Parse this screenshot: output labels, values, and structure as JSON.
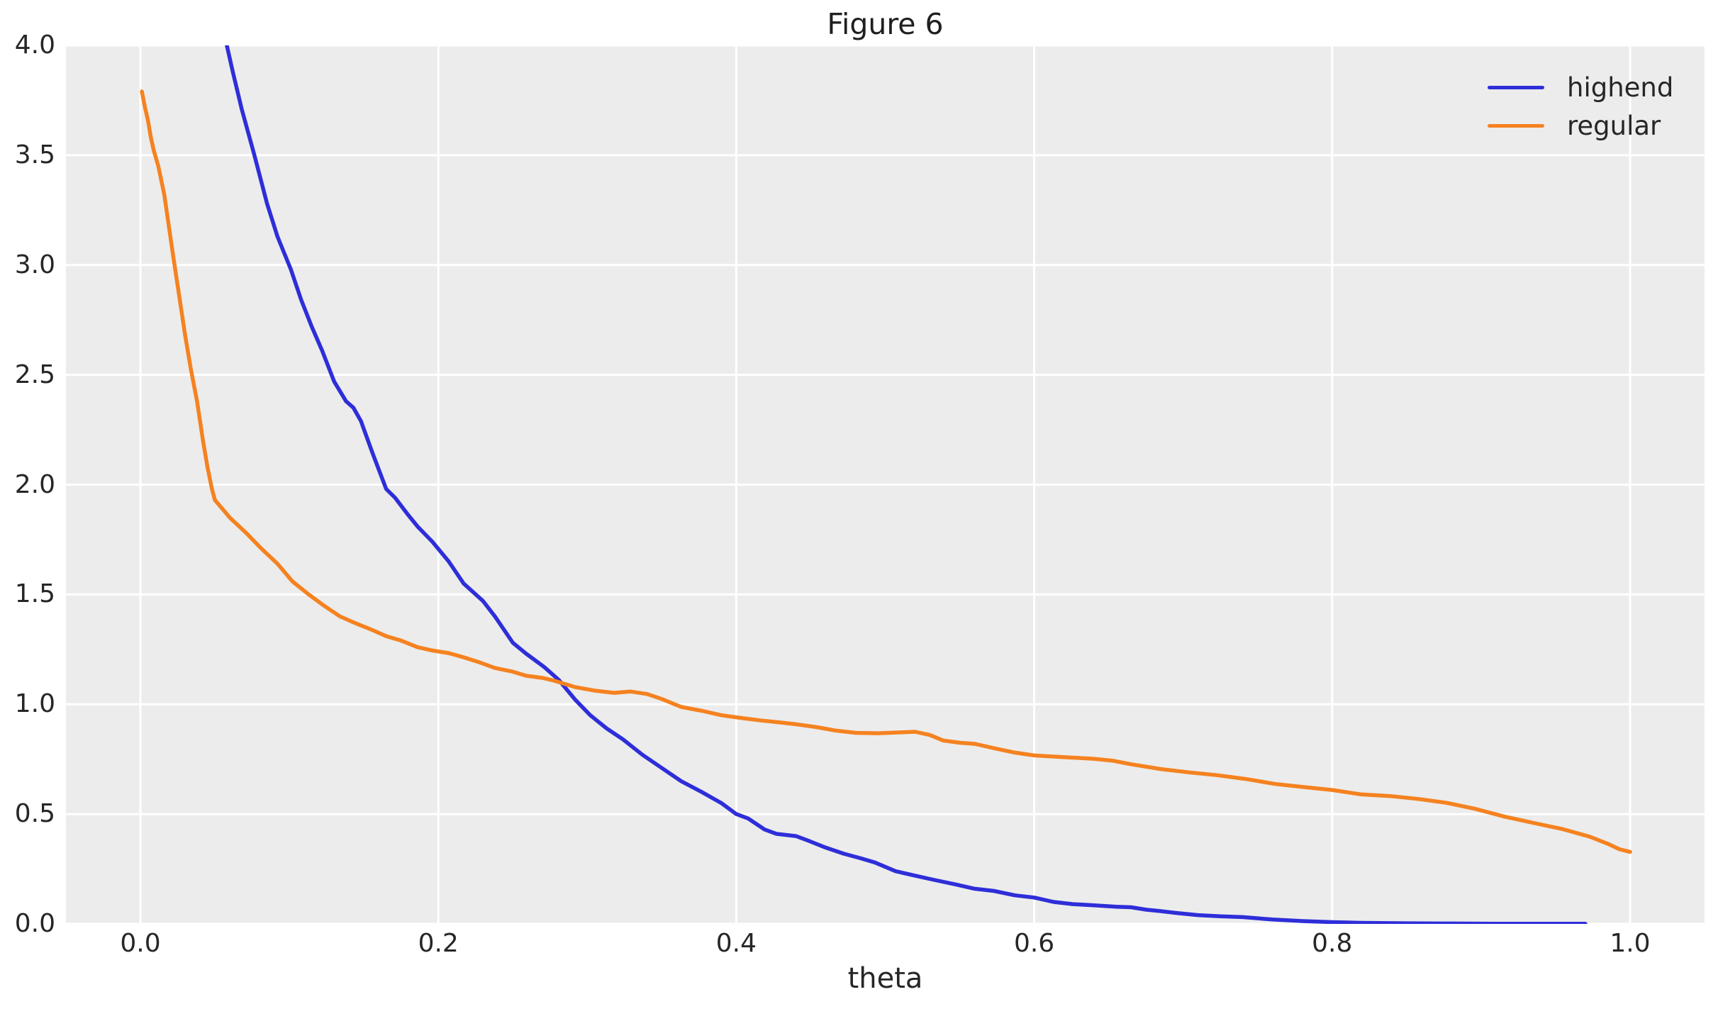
{
  "chart_data": {
    "type": "line",
    "title": "Figure 6",
    "xlabel": "theta",
    "ylabel": "",
    "xlim": [
      -0.05,
      1.05
    ],
    "ylim": [
      0,
      4
    ],
    "grid": true,
    "legend_position": "upper right",
    "axes_background": "#ececec",
    "grid_color": "#ffffff",
    "xticks": [
      0.0,
      0.2,
      0.4,
      0.6,
      0.8,
      1.0
    ],
    "xtick_labels": [
      "0.0",
      "0.2",
      "0.4",
      "0.6",
      "0.8",
      "1.0"
    ],
    "yticks": [
      0.0,
      0.5,
      1.0,
      1.5,
      2.0,
      2.5,
      3.0,
      3.5,
      4.0
    ],
    "ytick_labels": [
      "0.0",
      "0.5",
      "1.0",
      "1.5",
      "2.0",
      "2.5",
      "3.0",
      "3.5",
      "4.0"
    ],
    "series": [
      {
        "name": "highend",
        "color": "#2e2ed9",
        "x": [
          0.055,
          0.058,
          0.062,
          0.068,
          0.0765,
          0.085,
          0.092,
          0.101,
          0.108,
          0.115,
          0.122,
          0.13,
          0.138,
          0.143,
          0.148,
          0.156,
          0.165,
          0.171,
          0.18,
          0.186,
          0.196,
          0.207,
          0.217,
          0.23,
          0.238,
          0.25,
          0.259,
          0.271,
          0.281,
          0.292,
          0.302,
          0.313,
          0.324,
          0.337,
          0.35,
          0.363,
          0.377,
          0.39,
          0.4,
          0.408,
          0.419,
          0.427,
          0.44,
          0.448,
          0.459,
          0.472,
          0.483,
          0.493,
          0.507,
          0.52,
          0.533,
          0.547,
          0.56,
          0.573,
          0.587,
          0.6,
          0.613,
          0.626,
          0.64,
          0.655,
          0.665,
          0.675,
          0.685,
          0.695,
          0.71,
          0.725,
          0.74,
          0.76,
          0.78,
          0.8,
          0.82,
          0.85,
          0.88,
          0.91,
          0.94,
          0.97
        ],
        "y": [
          4.15,
          4.0,
          3.88,
          3.71,
          3.5,
          3.28,
          3.13,
          2.98,
          2.84,
          2.72,
          2.61,
          2.47,
          2.38,
          2.35,
          2.29,
          2.14,
          1.98,
          1.94,
          1.86,
          1.81,
          1.74,
          1.65,
          1.55,
          1.47,
          1.4,
          1.28,
          1.23,
          1.17,
          1.11,
          1.02,
          0.95,
          0.89,
          0.84,
          0.77,
          0.71,
          0.65,
          0.6,
          0.55,
          0.5,
          0.48,
          0.43,
          0.41,
          0.4,
          0.38,
          0.35,
          0.32,
          0.3,
          0.28,
          0.24,
          0.22,
          0.2,
          0.18,
          0.16,
          0.15,
          0.13,
          0.12,
          0.1,
          0.09,
          0.085,
          0.078,
          0.076,
          0.065,
          0.058,
          0.05,
          0.04,
          0.035,
          0.031,
          0.02,
          0.013,
          0.008,
          0.005,
          0.003,
          0.002,
          0.001,
          0.001,
          0.001
        ]
      },
      {
        "name": "regular",
        "color": "#f58220",
        "x": [
          0.001,
          0.003,
          0.005,
          0.007,
          0.009,
          0.012,
          0.016,
          0.019,
          0.022,
          0.026,
          0.03,
          0.034,
          0.038,
          0.042,
          0.045,
          0.048,
          0.05,
          0.06,
          0.071,
          0.081,
          0.092,
          0.102,
          0.113,
          0.123,
          0.134,
          0.144,
          0.155,
          0.165,
          0.175,
          0.186,
          0.196,
          0.207,
          0.217,
          0.228,
          0.238,
          0.249,
          0.259,
          0.27,
          0.278,
          0.292,
          0.305,
          0.318,
          0.329,
          0.34,
          0.35,
          0.363,
          0.377,
          0.39,
          0.403,
          0.417,
          0.43,
          0.44,
          0.454,
          0.467,
          0.48,
          0.495,
          0.51,
          0.52,
          0.53,
          0.539,
          0.55,
          0.56,
          0.573,
          0.587,
          0.6,
          0.613,
          0.626,
          0.64,
          0.653,
          0.665,
          0.685,
          0.704,
          0.723,
          0.742,
          0.762,
          0.781,
          0.8,
          0.819,
          0.839,
          0.858,
          0.877,
          0.896,
          0.916,
          0.935,
          0.954,
          0.973,
          0.985,
          0.993,
          1.0
        ],
        "y": [
          3.79,
          3.72,
          3.66,
          3.58,
          3.52,
          3.45,
          3.32,
          3.18,
          3.04,
          2.86,
          2.68,
          2.52,
          2.38,
          2.2,
          2.08,
          1.98,
          1.93,
          1.85,
          1.78,
          1.71,
          1.64,
          1.56,
          1.5,
          1.45,
          1.4,
          1.37,
          1.34,
          1.31,
          1.29,
          1.26,
          1.245,
          1.233,
          1.214,
          1.19,
          1.165,
          1.15,
          1.13,
          1.12,
          1.107,
          1.078,
          1.062,
          1.052,
          1.058,
          1.047,
          1.024,
          0.988,
          0.97,
          0.95,
          0.938,
          0.926,
          0.917,
          0.909,
          0.896,
          0.88,
          0.87,
          0.868,
          0.872,
          0.875,
          0.86,
          0.835,
          0.825,
          0.82,
          0.8,
          0.78,
          0.767,
          0.762,
          0.757,
          0.752,
          0.743,
          0.727,
          0.705,
          0.69,
          0.677,
          0.66,
          0.637,
          0.623,
          0.61,
          0.59,
          0.582,
          0.569,
          0.551,
          0.524,
          0.488,
          0.46,
          0.433,
          0.397,
          0.365,
          0.34,
          0.328
        ]
      }
    ]
  }
}
